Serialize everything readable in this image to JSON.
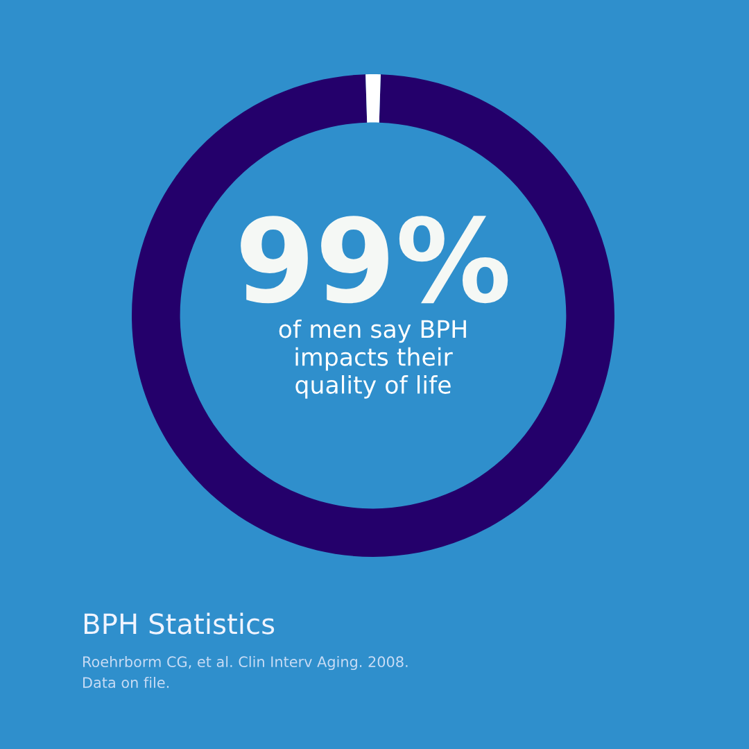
{
  "chart_data": {
    "type": "donut",
    "title": "BPH Statistics",
    "subtitle": "of men say BPH\nimpacts their\nquality of life",
    "categories": [
      null,
      null
    ],
    "values": [
      99,
      1
    ],
    "colors": [
      "#24006b",
      "#ffffff"
    ],
    "value_labels": [
      "99%",
      null
    ],
    "annotations": [
      "Roehrborm CG, et al. Clin Interv Aging. 2008.",
      "Data on file."
    ],
    "legend": false
  }
}
